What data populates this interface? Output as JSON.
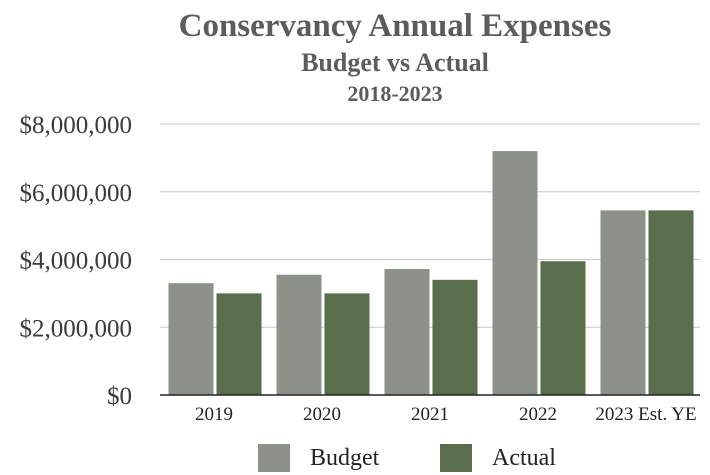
{
  "chart_data": {
    "type": "bar",
    "title": "Conservancy Annual Expenses",
    "subtitle": "Budget vs Actual",
    "subtitle2": "2018-2023",
    "categories": [
      "2019",
      "2020",
      "2021",
      "2022",
      "2023 Est. YE"
    ],
    "series": [
      {
        "name": "Budget",
        "color": "#8c918a",
        "values": [
          3300000,
          3550000,
          3720000,
          7200000,
          5450000
        ]
      },
      {
        "name": "Actual",
        "color": "#5a6e4c",
        "values": [
          3000000,
          3000000,
          3400000,
          3950000,
          5450000
        ]
      }
    ],
    "ylim": [
      0,
      8000000
    ],
    "yticks": [
      0,
      2000000,
      4000000,
      6000000,
      8000000
    ],
    "ytick_labels": [
      "$0",
      "$2,000,000",
      "$4,000,000",
      "$6,000,000",
      "$8,000,000"
    ],
    "grid": true,
    "legend": "bottom"
  }
}
